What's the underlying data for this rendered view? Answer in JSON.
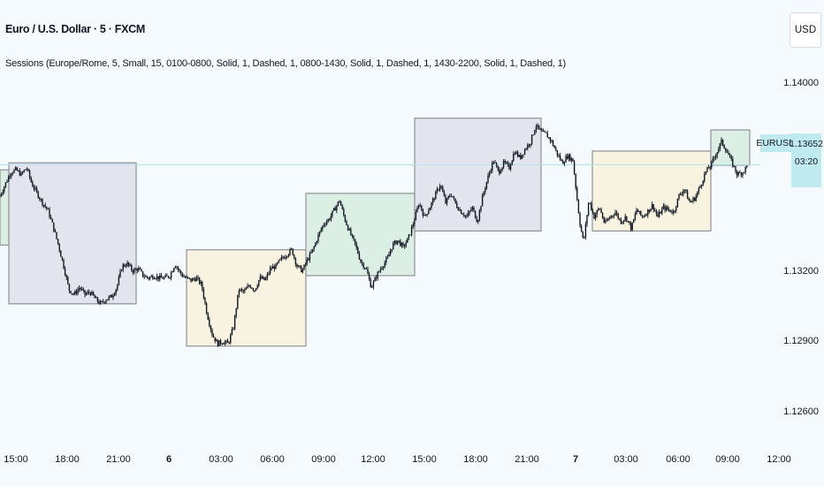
{
  "header": {
    "title": "Euro / U.S. Dollar · 5 · FXCM",
    "indicator": "Sessions (Europe/Rome, 5, Small, 15, 0100-0800, Solid, 1, Dashed, 1, 0800-1430, Solid, 1, Dashed, 1, 1430-2200, Solid, 1, Dashed, 1)",
    "currency": "USD"
  },
  "price_tag": {
    "symbol": "EURUSD",
    "price": "1.13652",
    "countdown": "03:20"
  },
  "colors": {
    "asia_fill": "#e3e5ee",
    "london_fill": "#f7f3e0",
    "newyork_fill": "#dcefe5",
    "box_border": "#8e9296",
    "price_tag_bg": "#bfeaf0",
    "candle": "#131722",
    "background": "#f5fafe"
  },
  "chart_data": {
    "type": "candlestick",
    "symbol": "EURUSD",
    "timeframe": "5",
    "x_axis_ticks": [
      "15:00",
      "18:00",
      "21:00",
      "6",
      "03:00",
      "06:00",
      "09:00",
      "12:00",
      "15:00",
      "18:00",
      "21:00",
      "7",
      "03:00",
      "06:00",
      "09:00",
      "12:00"
    ],
    "y_axis_ticks": [
      "1.14000",
      "1.13200",
      "1.12900",
      "1.12600"
    ],
    "ylim": [
      1.1245,
      1.1415
    ],
    "xlim": [
      0,
      885
    ],
    "current_price": 1.13652,
    "price_path": [
      [
        0,
        1.1352
      ],
      [
        6,
        1.1357
      ],
      [
        12,
        1.1362
      ],
      [
        18,
        1.1363
      ],
      [
        24,
        1.1361
      ],
      [
        30,
        1.1364
      ],
      [
        36,
        1.1357
      ],
      [
        42,
        1.1353
      ],
      [
        48,
        1.1349
      ],
      [
        54,
        1.1346
      ],
      [
        60,
        1.1339
      ],
      [
        66,
        1.1331
      ],
      [
        72,
        1.1322
      ],
      [
        78,
        1.1312
      ],
      [
        84,
        1.131
      ],
      [
        90,
        1.1313
      ],
      [
        96,
        1.131
      ],
      [
        102,
        1.1311
      ],
      [
        108,
        1.1308
      ],
      [
        114,
        1.1306
      ],
      [
        120,
        1.1308
      ],
      [
        126,
        1.1309
      ],
      [
        132,
        1.1313
      ],
      [
        138,
        1.1322
      ],
      [
        144,
        1.1323
      ],
      [
        150,
        1.132
      ],
      [
        156,
        1.1321
      ],
      [
        162,
        1.1318
      ],
      [
        168,
        1.1317
      ],
      [
        174,
        1.1318
      ],
      [
        180,
        1.1317
      ],
      [
        186,
        1.1317
      ],
      [
        192,
        1.1318
      ],
      [
        198,
        1.1323
      ],
      [
        204,
        1.1319
      ],
      [
        210,
        1.1317
      ],
      [
        216,
        1.1316
      ],
      [
        222,
        1.1317
      ],
      [
        228,
        1.1314
      ],
      [
        234,
        1.1302
      ],
      [
        240,
        1.1293
      ],
      [
        246,
        1.1289
      ],
      [
        252,
        1.129
      ],
      [
        258,
        1.1289
      ],
      [
        264,
        1.1296
      ],
      [
        270,
        1.1312
      ],
      [
        276,
        1.1311
      ],
      [
        282,
        1.1314
      ],
      [
        288,
        1.1312
      ],
      [
        294,
        1.1317
      ],
      [
        300,
        1.1316
      ],
      [
        306,
        1.1321
      ],
      [
        312,
        1.1322
      ],
      [
        318,
        1.1325
      ],
      [
        324,
        1.1327
      ],
      [
        330,
        1.1329
      ],
      [
        336,
        1.1322
      ],
      [
        342,
        1.132
      ],
      [
        348,
        1.1325
      ],
      [
        354,
        1.1329
      ],
      [
        360,
        1.1335
      ],
      [
        366,
        1.134
      ],
      [
        372,
        1.1342
      ],
      [
        378,
        1.1346
      ],
      [
        384,
        1.135
      ],
      [
        390,
        1.1342
      ],
      [
        396,
        1.1336
      ],
      [
        402,
        1.1331
      ],
      [
        408,
        1.1324
      ],
      [
        414,
        1.1321
      ],
      [
        420,
        1.1313
      ],
      [
        426,
        1.1318
      ],
      [
        432,
        1.1322
      ],
      [
        438,
        1.1325
      ],
      [
        444,
        1.1331
      ],
      [
        450,
        1.1333
      ],
      [
        456,
        1.133
      ],
      [
        462,
        1.1334
      ],
      [
        468,
        1.1341
      ],
      [
        474,
        1.1349
      ],
      [
        480,
        1.1343
      ],
      [
        486,
        1.1347
      ],
      [
        492,
        1.1352
      ],
      [
        498,
        1.1357
      ],
      [
        504,
        1.1349
      ],
      [
        510,
        1.1353
      ],
      [
        516,
        1.1348
      ],
      [
        522,
        1.1345
      ],
      [
        528,
        1.1343
      ],
      [
        534,
        1.1347
      ],
      [
        540,
        1.1341
      ],
      [
        546,
        1.1352
      ],
      [
        552,
        1.136
      ],
      [
        558,
        1.1367
      ],
      [
        564,
        1.1362
      ],
      [
        570,
        1.1366
      ],
      [
        576,
        1.1364
      ],
      [
        582,
        1.1371
      ],
      [
        588,
        1.1368
      ],
      [
        594,
        1.1372
      ],
      [
        600,
        1.1375
      ],
      [
        606,
        1.1382
      ],
      [
        612,
        1.1379
      ],
      [
        618,
        1.1378
      ],
      [
        624,
        1.1375
      ],
      [
        630,
        1.137
      ],
      [
        636,
        1.1366
      ],
      [
        642,
        1.1369
      ],
      [
        648,
        1.1367
      ],
      [
        652,
        1.1353
      ],
      [
        656,
        1.134
      ],
      [
        660,
        1.1332
      ],
      [
        666,
        1.135
      ],
      [
        672,
        1.1343
      ],
      [
        678,
        1.1347
      ],
      [
        684,
        1.134
      ],
      [
        690,
        1.1343
      ],
      [
        696,
        1.1345
      ],
      [
        702,
        1.1341
      ],
      [
        708,
        1.1343
      ],
      [
        714,
        1.1338
      ],
      [
        720,
        1.1346
      ],
      [
        726,
        1.1343
      ],
      [
        732,
        1.1345
      ],
      [
        738,
        1.1348
      ],
      [
        744,
        1.1343
      ],
      [
        750,
        1.1347
      ],
      [
        756,
        1.1346
      ],
      [
        762,
        1.1345
      ],
      [
        768,
        1.1352
      ],
      [
        774,
        1.1355
      ],
      [
        780,
        1.1349
      ],
      [
        786,
        1.1351
      ],
      [
        792,
        1.1356
      ],
      [
        798,
        1.1362
      ],
      [
        804,
        1.1365
      ],
      [
        810,
        1.137
      ],
      [
        816,
        1.1375
      ],
      [
        822,
        1.1371
      ],
      [
        828,
        1.1366
      ],
      [
        834,
        1.1361
      ],
      [
        840,
        1.1362
      ],
      [
        846,
        1.1365
      ]
    ],
    "sessions": [
      {
        "kind": "newyork",
        "x": [
          -20,
          10
        ],
        "high": 1.1363,
        "low": 1.1331
      },
      {
        "kind": "asia",
        "x": [
          10,
          154
        ],
        "high": 1.1366,
        "low": 1.1306
      },
      {
        "kind": "london",
        "x": [
          211,
          346
        ],
        "high": 1.1329,
        "low": 1.1288
      },
      {
        "kind": "newyork",
        "x": [
          346,
          469
        ],
        "high": 1.1353,
        "low": 1.1318
      },
      {
        "kind": "asia",
        "x": [
          469,
          612
        ],
        "high": 1.1385,
        "low": 1.1337
      },
      {
        "kind": "london",
        "x": [
          670,
          804
        ],
        "high": 1.1371,
        "low": 1.1337
      },
      {
        "kind": "newyork",
        "x": [
          804,
          848
        ],
        "high": 1.138,
        "low": 1.1365
      }
    ]
  }
}
